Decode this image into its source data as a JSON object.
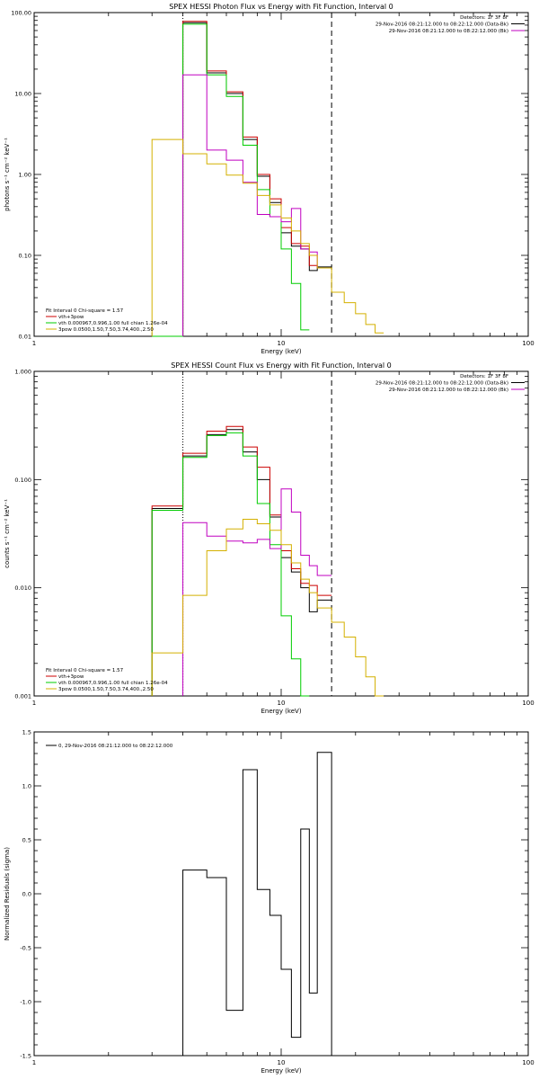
{
  "chart_data": [
    {
      "type": "line",
      "title": "SPEX HESSI Photon Flux vs Energy with Fit Function, Interval 0",
      "xlabel": "Energy (keV)",
      "ylabel": "photons s⁻¹ cm⁻² keV⁻¹",
      "xscale": "log",
      "yscale": "log",
      "xlim": [
        1,
        100
      ],
      "ylim": [
        0.01,
        100
      ],
      "xticks": [
        "1",
        "10",
        "100"
      ],
      "yticks": [
        "0.01",
        "0.10",
        "1.00",
        "10.00",
        "100.00"
      ],
      "vlines": [
        {
          "x": 4.0,
          "style": "dotted",
          "color": "#000000"
        },
        {
          "x": 16.0,
          "style": "dashed",
          "color": "#000000"
        }
      ],
      "info_lines": [
        {
          "text": "Detectors: 1F 3F 8F"
        },
        {
          "text": "29-Nov-2016 08:21:12.000 to 08:22:12.000 (Data-Bk)",
          "color": "#000000"
        },
        {
          "text": "29-Nov-2016 08:21:12.000 to 08:22:12.000 (Bk)",
          "color": "#c000c0"
        }
      ],
      "legend_title": "Fit Interval 0   Chi-square = 1.57",
      "legend": [
        {
          "text": "vth+3pow",
          "color": "#cc0000"
        },
        {
          "text": "vth 0.000967,0.996,1.00  full chian 1.26e-04",
          "color": "#00cc00"
        },
        {
          "text": "3pow 0.0500,1.50,7.50,3.74,400.,2.50",
          "color": "#d4b000"
        }
      ],
      "edges": [
        3.0,
        4.0,
        5.0,
        6.0,
        7.0,
        8.0,
        9.0,
        10.0,
        11.0,
        12.0,
        13.0,
        14.0,
        16.0,
        18.0,
        20.0,
        22.0,
        24.0,
        26.0
      ],
      "series": [
        {
          "color": "#000000",
          "values": [
            null,
            75,
            18,
            10,
            2.7,
            0.95,
            0.45,
            0.19,
            0.13,
            0.12,
            0.065,
            0.072,
            null,
            null,
            null,
            null,
            null
          ]
        },
        {
          "color": "#cc0000",
          "values": [
            null,
            78,
            19,
            10.5,
            2.9,
            1.0,
            0.5,
            0.22,
            0.14,
            0.13,
            0.075,
            0.07,
            null,
            null,
            null,
            null,
            null
          ]
        },
        {
          "color": "#00cc00",
          "values": [
            0.01,
            72,
            17,
            9.2,
            2.3,
            0.65,
            0.3,
            0.12,
            0.045,
            0.012,
            null,
            null,
            null,
            null,
            null,
            null,
            null
          ]
        },
        {
          "color": "#c000c0",
          "values": [
            null,
            17,
            2.0,
            1.5,
            0.8,
            0.32,
            0.3,
            0.26,
            0.38,
            0.12,
            0.11,
            0.07,
            null,
            null,
            null,
            null,
            null
          ]
        },
        {
          "color": "#d4b000",
          "values": [
            2.7,
            1.8,
            1.35,
            0.98,
            0.78,
            0.55,
            0.42,
            0.29,
            0.2,
            0.14,
            0.1,
            0.07,
            0.035,
            0.026,
            0.019,
            0.014,
            0.011
          ]
        }
      ]
    },
    {
      "type": "line",
      "title": "SPEX HESSI Count Flux vs Energy with Fit Function, Interval 0",
      "xlabel": "Energy (keV)",
      "ylabel": "counts s⁻¹ cm⁻² keV⁻¹",
      "xscale": "log",
      "yscale": "log",
      "xlim": [
        1,
        100
      ],
      "ylim": [
        0.001,
        1
      ],
      "xticks": [
        "1",
        "10",
        "100"
      ],
      "yticks": [
        "0.001",
        "0.010",
        "0.100",
        "1.000"
      ],
      "vlines": [
        {
          "x": 4.0,
          "style": "dotted",
          "color": "#000000"
        },
        {
          "x": 16.0,
          "style": "dashed",
          "color": "#000000"
        }
      ],
      "info_lines": [
        {
          "text": "Detectors: 1F 3F 8F"
        },
        {
          "text": "29-Nov-2016 08:21:12.000 to 08:22:12.000 (Data-Bk)",
          "color": "#000000"
        },
        {
          "text": "29-Nov-2016 08:21:12.000 to 08:22:12.000 (Bk)",
          "color": "#c000c0"
        }
      ],
      "legend_title": "Fit Interval 0   Chi-square = 1.57",
      "legend": [
        {
          "text": "vth+3pow",
          "color": "#cc0000"
        },
        {
          "text": "vth 0.000967,0.996,1.00  full chian 1.26e-04",
          "color": "#00cc00"
        },
        {
          "text": "3pow 0.0500,1.50,7.50,3.74,400.,2.50",
          "color": "#d4b000"
        }
      ],
      "edges": [
        3.0,
        4.0,
        5.0,
        6.0,
        7.0,
        8.0,
        9.0,
        10.0,
        11.0,
        12.0,
        13.0,
        14.0,
        16.0,
        18.0,
        20.0,
        22.0,
        24.0,
        26.0
      ],
      "series": [
        {
          "color": "#000000",
          "values": [
            0.054,
            0.165,
            0.26,
            0.29,
            0.18,
            0.1,
            0.045,
            0.019,
            0.014,
            0.01,
            0.006,
            0.0077,
            null,
            null,
            null,
            null,
            null
          ]
        },
        {
          "color": "#cc0000",
          "values": [
            0.057,
            0.175,
            0.28,
            0.31,
            0.2,
            0.13,
            0.047,
            0.022,
            0.015,
            0.011,
            0.0105,
            0.0085,
            null,
            null,
            null,
            null,
            null
          ]
        },
        {
          "color": "#00cc00",
          "values": [
            0.052,
            0.16,
            0.255,
            0.27,
            0.165,
            0.06,
            0.025,
            0.0055,
            0.0022,
            0.001,
            null,
            null,
            null,
            null,
            null,
            null,
            null
          ]
        },
        {
          "color": "#c000c0",
          "values": [
            null,
            0.04,
            0.03,
            0.027,
            0.026,
            0.028,
            0.023,
            0.082,
            0.05,
            0.02,
            0.016,
            0.013,
            null,
            null,
            null,
            null,
            null
          ]
        },
        {
          "color": "#d4b000",
          "values": [
            0.0025,
            0.0085,
            0.022,
            0.035,
            0.043,
            0.039,
            0.034,
            0.025,
            0.017,
            0.012,
            0.009,
            0.0065,
            0.0048,
            0.0035,
            0.0023,
            0.0015,
            0.001
          ]
        }
      ]
    },
    {
      "type": "line",
      "title": "",
      "xlabel": "Energy (keV)",
      "ylabel": "Normalized Residuals (sigma)",
      "xscale": "log",
      "yscale": "linear",
      "xlim": [
        1,
        100
      ],
      "ylim": [
        -1.5,
        1.5
      ],
      "xticks": [
        "1",
        "10",
        "100"
      ],
      "yticks": [
        "-1.5",
        "-1.0",
        "-0.5",
        "0.0",
        "0.5",
        "1.0",
        "1.5"
      ],
      "legend": [
        {
          "text": "0, 29-Nov-2016 08:21:12.000 to 08:22:12.000",
          "color": "#000000"
        }
      ],
      "edges": [
        4.0,
        5.0,
        6.0,
        7.0,
        8.0,
        9.0,
        10.0,
        11.0,
        12.0,
        13.0,
        14.0,
        16.0
      ],
      "series": [
        {
          "color": "#000000",
          "values": [
            0.22,
            0.15,
            -1.08,
            1.15,
            0.04,
            -0.2,
            -0.7,
            -1.33,
            0.6,
            -0.92,
            1.31
          ]
        }
      ]
    }
  ]
}
